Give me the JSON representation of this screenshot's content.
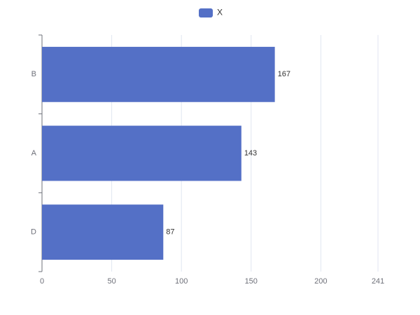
{
  "chart_data": {
    "type": "bar",
    "orientation": "horizontal",
    "categories": [
      "B",
      "A",
      "D"
    ],
    "series": [
      {
        "name": "X",
        "color": "#5470c6",
        "values": [
          167,
          143,
          87
        ]
      }
    ],
    "xlim": [
      0,
      241
    ],
    "xticks": [
      0,
      50,
      100,
      150,
      200,
      241
    ],
    "grid": true,
    "legend": "top"
  }
}
